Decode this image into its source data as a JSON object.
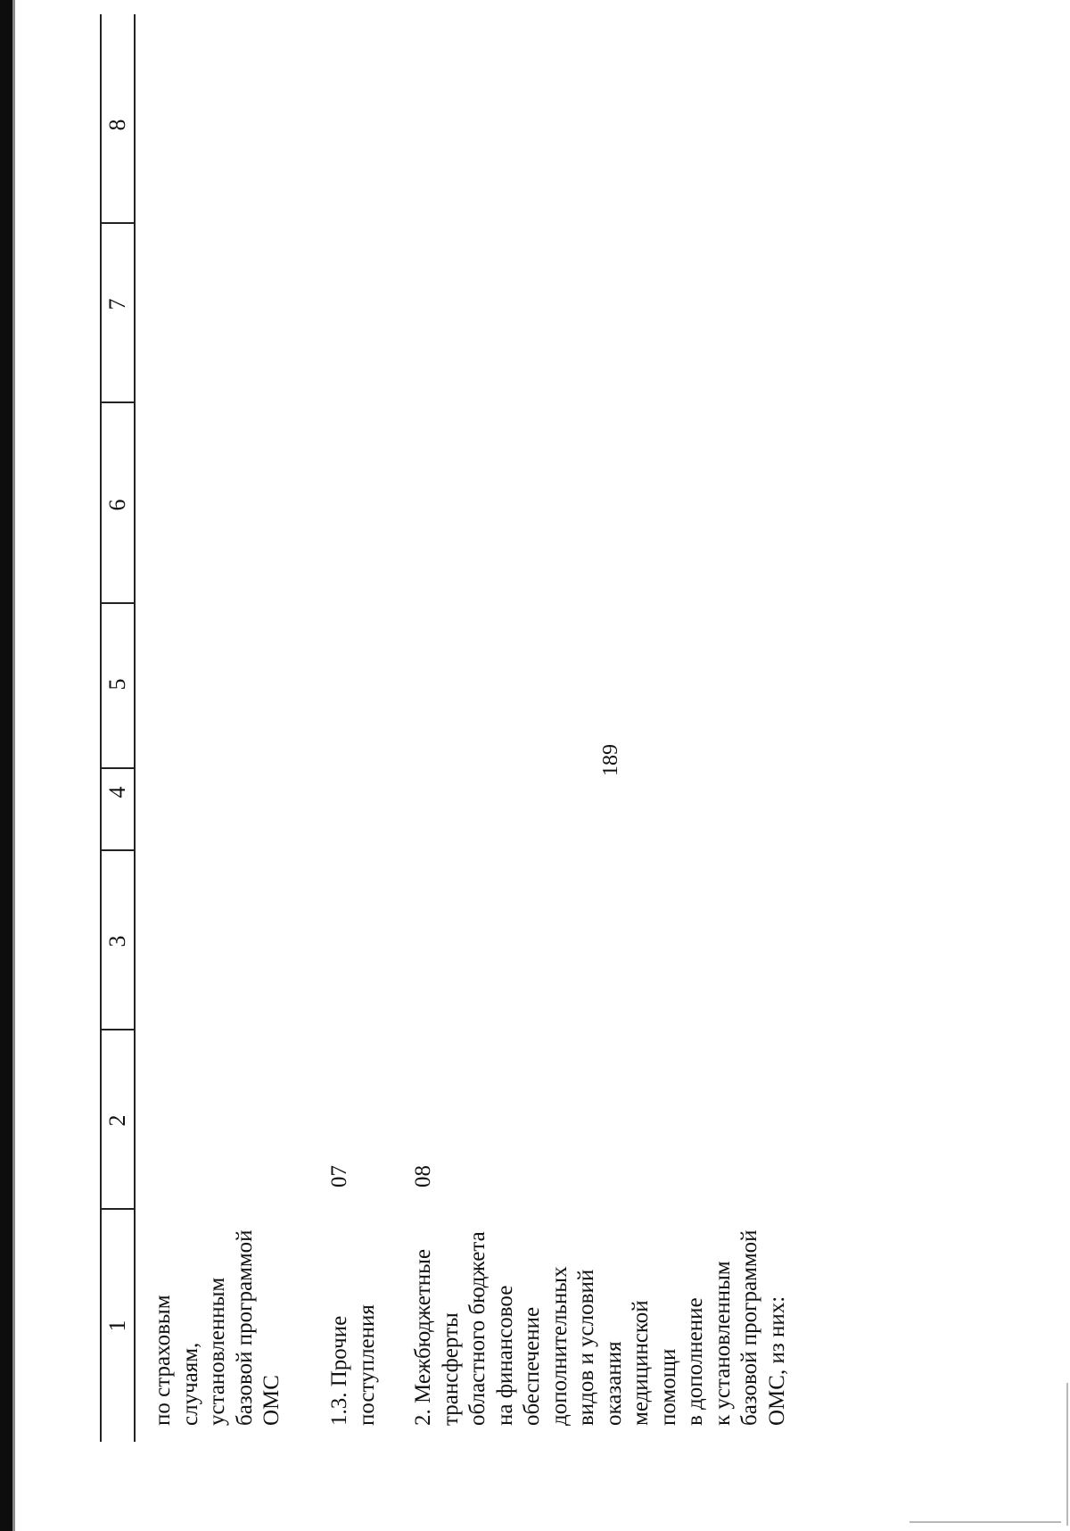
{
  "page_number": "189",
  "table": {
    "column_numbers": [
      "1",
      "2",
      "3",
      "4",
      "5",
      "6",
      "7",
      "8"
    ],
    "rows": [
      {
        "label_lines": [
          "по страховым",
          "случаям,",
          "установленным",
          "базовой программой",
          "ОМС"
        ],
        "code": ""
      },
      {
        "label_lines": [
          "1.3. Прочие",
          "поступления"
        ],
        "code": "07"
      },
      {
        "label_lines": [
          "2. Межбюджетные",
          "трансферты",
          "областного бюджета",
          "на финансовое",
          "обеспечение",
          "дополнительных",
          "видов и условий",
          "оказания",
          "медицинской",
          "помощи",
          "в дополнение",
          "к установленным",
          "базовой программой",
          "ОМС, из них:"
        ],
        "code": "08"
      }
    ]
  }
}
